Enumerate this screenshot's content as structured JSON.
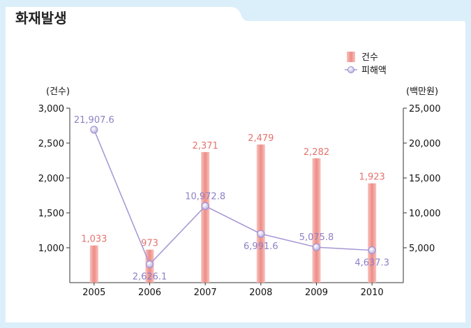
{
  "chart_data": {
    "type": "bar",
    "title": "화재발생",
    "categories": [
      "2005",
      "2006",
      "2007",
      "2008",
      "2009",
      "2010"
    ],
    "series": [
      {
        "name": "건수",
        "type": "bar",
        "axis": "left",
        "values": [
          1033,
          973,
          2371,
          2479,
          2282,
          1923
        ],
        "labels": [
          "1,033",
          "973",
          "2,371",
          "2,479",
          "2,282",
          "1,923"
        ],
        "color": "#f2a5a0"
      },
      {
        "name": "피해액",
        "type": "line",
        "axis": "right",
        "values": [
          21907.6,
          2626.1,
          10972.8,
          6991.6,
          5075.8,
          4637.3
        ],
        "labels": [
          "21,907.6",
          "2,626.1",
          "10,972.8",
          "6,991.6",
          "5,075.8",
          "4,637.3"
        ],
        "color": "#a99ad6"
      }
    ],
    "y_left": {
      "label": "(건수)",
      "ylim": [
        500,
        3000
      ],
      "ticks": [
        1000,
        1500,
        2000,
        2500,
        3000
      ],
      "tick_labels": [
        "1,000",
        "1,500",
        "2,000",
        "2,500",
        "3,000"
      ]
    },
    "y_right": {
      "label": "(백만원)",
      "ylim": [
        0,
        25000
      ],
      "ticks": [
        5000,
        10000,
        15000,
        20000,
        25000
      ],
      "tick_labels": [
        "5,000",
        "10,000",
        "15,000",
        "20,000",
        "25,000"
      ]
    },
    "legend_position": "top-right",
    "grid": false
  }
}
